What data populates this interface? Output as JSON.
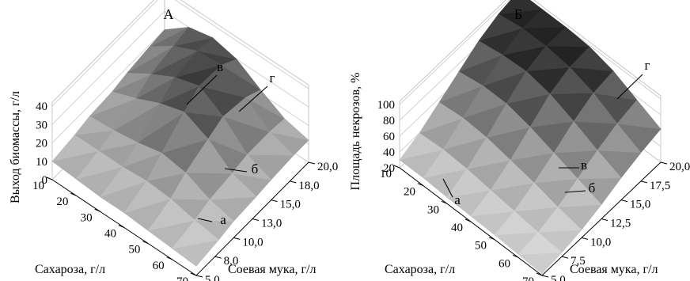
{
  "chart_data": [
    {
      "type": "surface3d",
      "panel": "А",
      "xlabel": "Сахароза, г/л",
      "ylabel": "Соевая мука, г/л",
      "zlabel": "Выход биомассы, г/л",
      "x_ticks": [
        "10",
        "20",
        "30",
        "40",
        "50",
        "60",
        "70"
      ],
      "y_ticks": [
        "5,0",
        "8,0",
        "10,0",
        "13,0",
        "15,0",
        "18,0",
        "20,0"
      ],
      "z_ticks": [
        "0",
        "10",
        "20",
        "30",
        "40"
      ],
      "x_values": [
        10,
        20,
        30,
        40,
        50,
        60,
        70
      ],
      "y_values": [
        5,
        8,
        10,
        13,
        15,
        18,
        20
      ],
      "zlim": [
        0,
        40
      ],
      "z": [
        [
          10,
          12,
          14,
          15,
          17,
          19,
          20
        ],
        [
          9,
          12,
          15,
          20,
          25,
          28,
          30
        ],
        [
          8,
          12,
          17,
          26,
          32,
          34,
          33
        ],
        [
          8,
          13,
          20,
          30,
          36,
          35,
          30
        ],
        [
          7,
          12,
          18,
          24,
          28,
          26,
          22
        ],
        [
          6,
          9,
          12,
          14,
          16,
          16,
          15
        ],
        [
          5,
          7,
          9,
          10,
          11,
          12,
          12
        ]
      ],
      "region_labels": [
        "а",
        "б",
        "в",
        "г"
      ]
    },
    {
      "type": "surface3d",
      "panel": "Б",
      "xlabel": "Сахароза, г/л",
      "ylabel": "Соевая мука, г/л",
      "zlabel": "Площадь некрозов, %",
      "x_ticks": [
        "10",
        "20",
        "30",
        "40",
        "50",
        "60",
        "70"
      ],
      "y_ticks": [
        "5,0",
        "7,5",
        "10,0",
        "12,5",
        "15,0",
        "17,5",
        "20,0"
      ],
      "z_ticks": [
        "20",
        "40",
        "60",
        "80",
        "100"
      ],
      "x_values": [
        10,
        20,
        30,
        40,
        50,
        60,
        70
      ],
      "y_values": [
        5,
        7.5,
        10,
        12.5,
        15,
        17.5,
        20
      ],
      "zlim": [
        20,
        100
      ],
      "z": [
        [
          30,
          40,
          55,
          70,
          85,
          95,
          100
        ],
        [
          30,
          42,
          58,
          75,
          90,
          100,
          100
        ],
        [
          28,
          40,
          56,
          75,
          92,
          100,
          100
        ],
        [
          27,
          36,
          50,
          68,
          86,
          96,
          98
        ],
        [
          26,
          32,
          44,
          58,
          74,
          86,
          90
        ],
        [
          24,
          28,
          36,
          48,
          60,
          70,
          76
        ],
        [
          22,
          25,
          30,
          38,
          48,
          56,
          62
        ]
      ],
      "region_labels": [
        "а",
        "б",
        "в",
        "г"
      ]
    }
  ]
}
